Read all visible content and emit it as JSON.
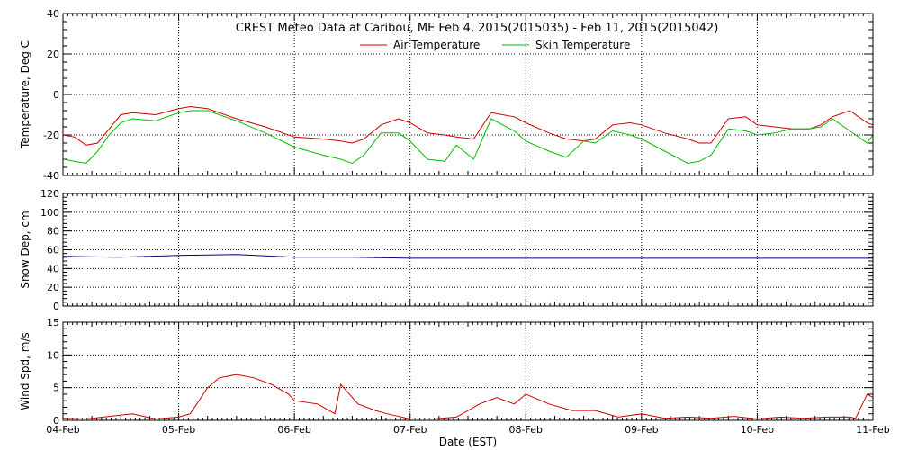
{
  "title": "CREST Meteo Data at Caribou, ME   Feb  4, 2015(2015035) - Feb 11, 2015(2015042)",
  "xlabel": "Date (EST)",
  "x_tick_labels": [
    "04-Feb",
    "05-Feb",
    "06-Feb",
    "07-Feb",
    "08-Feb",
    "09-Feb",
    "10-Feb",
    "11-Feb"
  ],
  "colors": {
    "air": "#cc0000",
    "skin": "#00bb00",
    "snow": "#000080",
    "wind": "#cc0000"
  },
  "chart_data": [
    {
      "type": "line",
      "ylabel": "Temperature, Deg C",
      "ylim": [
        -40,
        40
      ],
      "y_ticks": [
        -40,
        -20,
        0,
        20,
        40
      ],
      "grid": true,
      "legend": "top-center",
      "x_unit": "days since 04-Feb 00:00",
      "series": [
        {
          "name": "Air Temperature",
          "color": "#cc0000",
          "x": [
            0,
            0.1,
            0.2,
            0.3,
            0.4,
            0.5,
            0.6,
            0.8,
            1.0,
            1.1,
            1.25,
            1.5,
            1.75,
            2.0,
            2.25,
            2.4,
            2.5,
            2.6,
            2.75,
            2.9,
            3.0,
            3.15,
            3.3,
            3.4,
            3.55,
            3.7,
            3.9,
            4.0,
            4.2,
            4.35,
            4.5,
            4.6,
            4.75,
            4.9,
            5.0,
            5.2,
            5.4,
            5.5,
            5.6,
            5.75,
            5.9,
            6.0,
            6.15,
            6.3,
            6.45,
            6.55,
            6.65,
            6.8,
            6.95,
            7.0
          ],
          "values": [
            -20,
            -21,
            -25,
            -24,
            -17,
            -10,
            -9,
            -10,
            -7,
            -6,
            -7,
            -12,
            -16,
            -21,
            -22,
            -23,
            -24,
            -22,
            -15,
            -12,
            -14,
            -19,
            -20,
            -21,
            -22,
            -9,
            -11,
            -14,
            -19,
            -22,
            -23,
            -22,
            -15,
            -14,
            -15,
            -19,
            -22,
            -24,
            -24,
            -12,
            -11,
            -15,
            -16,
            -17,
            -17,
            -15,
            -11,
            -8,
            -14,
            -15
          ]
        },
        {
          "name": "Skin Temperature",
          "color": "#00bb00",
          "x": [
            0,
            0.1,
            0.2,
            0.3,
            0.4,
            0.5,
            0.6,
            0.8,
            1.0,
            1.1,
            1.25,
            1.5,
            1.75,
            2.0,
            2.25,
            2.4,
            2.5,
            2.6,
            2.75,
            2.9,
            3.0,
            3.15,
            3.3,
            3.4,
            3.55,
            3.7,
            3.9,
            4.0,
            4.2,
            4.35,
            4.5,
            4.6,
            4.75,
            4.9,
            5.0,
            5.2,
            5.4,
            5.5,
            5.6,
            5.75,
            5.9,
            6.0,
            6.15,
            6.3,
            6.45,
            6.55,
            6.65,
            6.8,
            6.95,
            7.0
          ],
          "values": [
            -32,
            -33,
            -34,
            -28,
            -20,
            -14,
            -12,
            -13,
            -9,
            -8,
            -8,
            -13,
            -19,
            -26,
            -30,
            -32,
            -34,
            -30,
            -19,
            -19,
            -23,
            -32,
            -33,
            -25,
            -32,
            -12,
            -18,
            -23,
            -28,
            -31,
            -23,
            -24,
            -18,
            -20,
            -22,
            -28,
            -34,
            -33,
            -30,
            -17,
            -18,
            -20,
            -19,
            -17,
            -17,
            -16,
            -12,
            -18,
            -24,
            -20
          ]
        }
      ]
    },
    {
      "type": "line",
      "ylabel": "Snow Dep, cm",
      "ylim": [
        0,
        120
      ],
      "y_ticks": [
        0,
        20,
        40,
        60,
        80,
        100,
        120
      ],
      "grid": true,
      "x_unit": "days since 04-Feb 00:00",
      "series": [
        {
          "name": "Snow Depth",
          "color": "#000080",
          "x": [
            0,
            0.5,
            1.0,
            1.5,
            2.0,
            2.5,
            3.0,
            3.5,
            4.0,
            4.5,
            5.0,
            5.5,
            6.0,
            6.5,
            7.0
          ],
          "values": [
            53,
            52,
            54,
            55,
            52,
            52,
            51,
            51,
            51,
            51,
            51,
            51,
            51,
            51,
            51
          ]
        }
      ]
    },
    {
      "type": "line",
      "ylabel": "Wind Spd, m/s",
      "ylim": [
        0,
        15
      ],
      "y_ticks": [
        0,
        5,
        10,
        15
      ],
      "grid": true,
      "x_unit": "days since 04-Feb 00:00",
      "series": [
        {
          "name": "Wind Speed",
          "color": "#cc0000",
          "x": [
            0,
            0.2,
            0.4,
            0.6,
            0.8,
            1.0,
            1.1,
            1.25,
            1.35,
            1.5,
            1.65,
            1.8,
            1.95,
            2.0,
            2.2,
            2.35,
            2.4,
            2.55,
            2.7,
            2.8,
            3.0,
            3.2,
            3.4,
            3.6,
            3.75,
            3.9,
            4.0,
            4.2,
            4.4,
            4.6,
            4.8,
            5.0,
            5.2,
            5.4,
            5.6,
            5.8,
            6.0,
            6.2,
            6.4,
            6.6,
            6.8,
            6.85,
            6.95,
            7.0
          ],
          "values": [
            0.3,
            0.2,
            0.6,
            1.0,
            0.2,
            0.5,
            1.0,
            5.0,
            6.5,
            7.0,
            6.5,
            5.5,
            4.0,
            3.0,
            2.5,
            1.0,
            5.5,
            2.5,
            1.5,
            1.0,
            0.2,
            0.2,
            0.5,
            2.5,
            3.5,
            2.5,
            4.0,
            2.5,
            1.5,
            1.5,
            0.5,
            1.0,
            0.3,
            0.5,
            0.3,
            0.6,
            0.2,
            0.5,
            0.3,
            0.5,
            0.5,
            0.3,
            4.0,
            3.5
          ]
        }
      ]
    }
  ]
}
